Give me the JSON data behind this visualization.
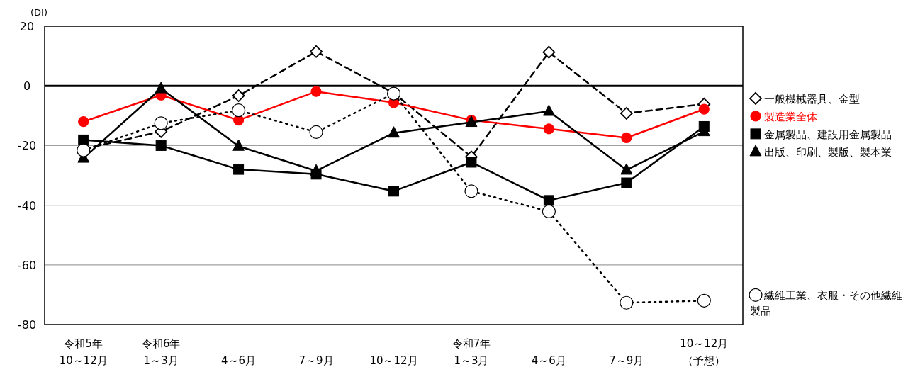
{
  "chart_data": {
    "type": "line",
    "ylabel": "(DI)",
    "categories": [
      "令和5年10～12月",
      "令和6年1～3月",
      "4～6月",
      "7～9月",
      "10～12月",
      "令和7年1～3月",
      "4～6月",
      "7～9月",
      "10～12月（予想）"
    ],
    "series": [
      {
        "name": "一般機械器具、金型",
        "color": "#000000",
        "marker": "diamond",
        "line_style": "dashed",
        "values": [
          -21.2,
          -15.3,
          -3.3,
          11.5,
          -2.4,
          -23.8,
          11.3,
          -9.2,
          -6.1
        ]
      },
      {
        "name": "製造業全体",
        "color": "#ff0000",
        "marker": "circle",
        "line_style": "solid",
        "values": [
          -12.0,
          -3.1,
          -11.5,
          -1.9,
          -5.6,
          -11.5,
          -14.4,
          -17.4,
          -7.8
        ]
      },
      {
        "name": "金属製品、建設用金属製品",
        "color": "#000000",
        "marker": "square",
        "line_style": "solid",
        "values": [
          -18.1,
          -20.0,
          -28.0,
          -29.6,
          -35.3,
          -25.6,
          -38.4,
          -32.5,
          -13.6
        ]
      },
      {
        "name": "出版、印刷、製版、製本業",
        "color": "#000000",
        "marker": "triangle",
        "line_style": "solid",
        "values": [
          -24.2,
          -0.9,
          -20.2,
          -28.5,
          -15.8,
          -12.2,
          -8.5,
          -28.2,
          -15.3
        ]
      },
      {
        "name": "繊維工業、衣服・その他繊維製品",
        "color": "#000000",
        "marker": "circle",
        "line_style": "dotted",
        "values": [
          -21.6,
          -12.5,
          -8.2,
          -15.5,
          -2.6,
          -35.3,
          -42.1,
          -72.7,
          -72.0
        ]
      }
    ],
    "ylim": [
      -80,
      20
    ],
    "yticks": [
      20,
      0,
      -20,
      -40,
      -60,
      -80
    ],
    "grid": "y",
    "legend": "right",
    "ref_lines": [
      {
        "axis": "y",
        "value": 0,
        "color": "#000000"
      }
    ]
  }
}
